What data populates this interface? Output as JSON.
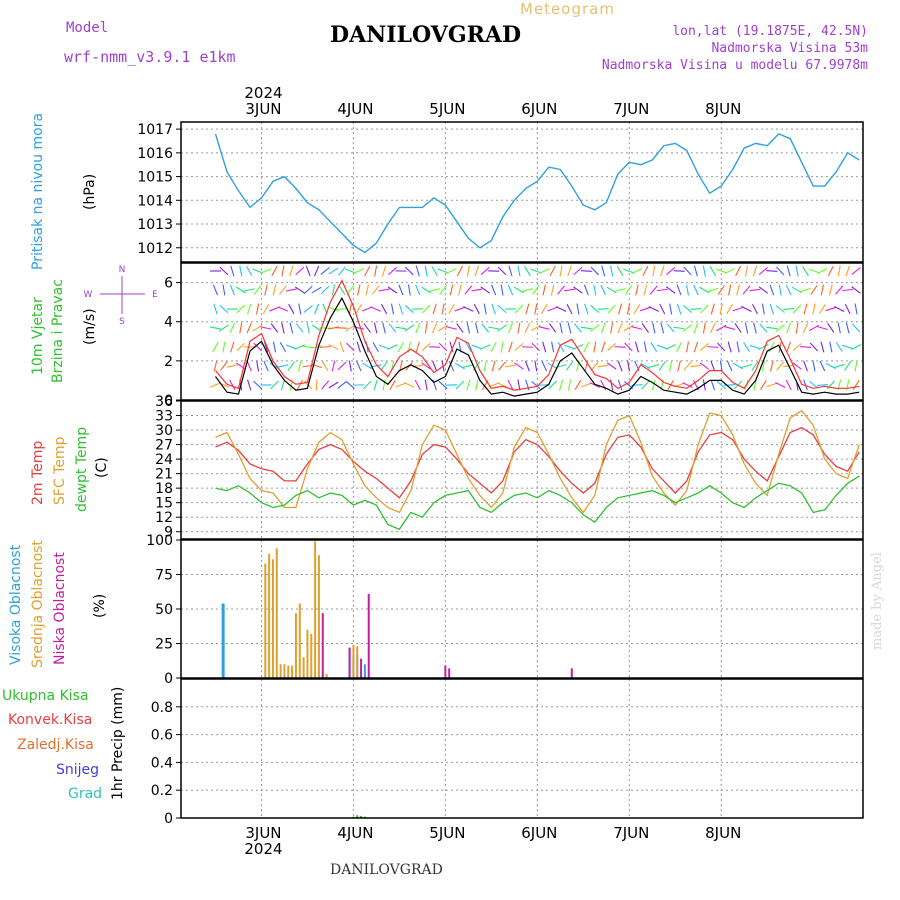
{
  "header": {
    "title": "DANILOVGRAD",
    "subtitle": "Meteogram",
    "model_label": "Model",
    "model_value": "wrf-nmm_v3.9.1 e1km",
    "coords": "lon,lat (19.1875E, 42.5N)",
    "elevation": "Nadmorska Visina 53m",
    "model_elevation": "Nadmorska Visina u modelu 67.9978m",
    "footer": "DANILOVGRAD",
    "credit": "made by Angel"
  },
  "colors": {
    "pressure": "#30a0e0",
    "temp2m": "#e84040",
    "sfc_temp": "#e0a030",
    "dewpt": "#30c030",
    "cloud_high": "#30a0e0",
    "cloud_mid": "#e0a030",
    "cloud_low": "#c020a0",
    "wind_speed": "#000000",
    "wind_gust": "#ff3030"
  },
  "chart_data": [
    {
      "type": "line",
      "panel": "pressure",
      "ylabel": [
        "Pritisak na nivou mora",
        "(hPa)"
      ],
      "ylim": [
        1011.4,
        1017.3
      ],
      "yticks": [
        1012,
        1013,
        1014,
        1015,
        1016,
        1017
      ],
      "x_year": "2024",
      "x_ticks": [
        "3JUN",
        "4JUN",
        "5JUN",
        "6JUN",
        "7JUN",
        "8JUN"
      ],
      "x_hours": [
        0,
        3,
        6,
        9,
        12,
        15,
        18,
        21,
        24,
        27,
        30,
        33,
        36,
        39,
        42,
        45,
        48,
        51,
        54,
        57,
        60,
        63,
        66,
        69,
        72,
        75,
        78,
        81,
        84,
        87,
        90,
        93,
        96,
        99,
        102,
        105,
        108,
        111,
        114,
        117,
        120,
        123,
        126,
        129,
        132,
        135,
        138,
        141,
        144,
        147,
        150,
        153,
        156,
        159,
        162,
        165,
        168
      ],
      "series": [
        {
          "name": "",
          "values": [
            1016.8,
            1015.2,
            1014.4,
            1013.7,
            1014.1,
            1014.8,
            1015.0,
            1014.5,
            1013.9,
            1013.6,
            1013.1,
            1012.6,
            1012.1,
            1011.8,
            1012.2,
            1013.0,
            1013.7,
            1013.7,
            1013.7,
            1014.1,
            1013.8,
            1013.1,
            1012.4,
            1012.0,
            1012.3,
            1013.3,
            1014.0,
            1014.5,
            1014.8,
            1015.4,
            1015.3,
            1014.6,
            1013.8,
            1013.6,
            1013.9,
            1015.1,
            1015.6,
            1015.5,
            1015.7,
            1016.3,
            1016.4,
            1016.1,
            1015.1,
            1014.3,
            1014.6,
            1015.3,
            1016.2,
            1016.4,
            1016.3,
            1016.8,
            1016.6,
            1015.6,
            1014.6,
            1014.6,
            1015.2,
            1016.0,
            1015.7
          ]
        }
      ]
    },
    {
      "type": "line",
      "panel": "wind",
      "ylabel": [
        "10m Vjetar",
        "Brzina i Pravac",
        "(m/s)"
      ],
      "compass": [
        "N",
        "W",
        "E",
        "S"
      ],
      "ylim": [
        0,
        7
      ],
      "yticks": [
        0,
        2,
        4,
        6
      ],
      "x_hours": [
        0,
        3,
        6,
        9,
        12,
        15,
        18,
        21,
        24,
        27,
        30,
        33,
        36,
        39,
        42,
        45,
        48,
        51,
        54,
        57,
        60,
        63,
        66,
        69,
        72,
        75,
        78,
        81,
        84,
        87,
        90,
        93,
        96,
        99,
        102,
        105,
        108,
        111,
        114,
        117,
        120,
        123,
        126,
        129,
        132,
        135,
        138,
        141,
        144,
        147,
        150,
        153,
        156,
        159,
        162,
        165,
        168
      ],
      "series": [
        {
          "name": "",
          "values": [
            1.2,
            0.4,
            0.3,
            2.5,
            3.0,
            1.8,
            1.0,
            0.5,
            0.6,
            2.8,
            4.2,
            5.2,
            4.0,
            2.5,
            1.2,
            0.8,
            1.5,
            1.8,
            1.5,
            0.9,
            1.2,
            2.6,
            2.3,
            1.0,
            0.3,
            0.4,
            0.2,
            0.3,
            0.4,
            0.8,
            2.0,
            2.4,
            1.6,
            0.8,
            0.6,
            0.3,
            0.5,
            1.2,
            0.9,
            0.5,
            0.4,
            0.3,
            0.6,
            1.0,
            1.0,
            0.5,
            0.3,
            1.0,
            2.5,
            2.8,
            1.6,
            0.4,
            0.3,
            0.4,
            0.3,
            0.3,
            0.4
          ]
        },
        {
          "name": "",
          "values": [
            1.5,
            0.8,
            0.6,
            3.0,
            3.4,
            2.0,
            1.2,
            0.8,
            0.9,
            3.3,
            5.0,
            6.1,
            4.8,
            3.0,
            1.8,
            1.2,
            2.2,
            2.6,
            2.2,
            1.4,
            1.8,
            3.2,
            2.9,
            1.5,
            0.6,
            0.7,
            0.5,
            0.6,
            0.7,
            1.3,
            2.8,
            3.1,
            2.2,
            1.3,
            1.1,
            0.6,
            0.9,
            1.8,
            1.4,
            0.9,
            0.7,
            0.6,
            1.0,
            1.5,
            1.5,
            0.9,
            0.6,
            1.5,
            3.0,
            3.3,
            2.1,
            0.8,
            0.6,
            0.7,
            0.6,
            0.6,
            0.7
          ]
        }
      ]
    },
    {
      "type": "line",
      "panel": "temperature",
      "ylabel": [
        "2m Temp",
        "SFC Temp",
        "dewpt Temp",
        "(C)"
      ],
      "ylim": [
        7.5,
        36
      ],
      "yticks": [
        9,
        12,
        15,
        18,
        21,
        24,
        27,
        30,
        33,
        36
      ],
      "x_hours": [
        0,
        3,
        6,
        9,
        12,
        15,
        18,
        21,
        24,
        27,
        30,
        33,
        36,
        39,
        42,
        45,
        48,
        51,
        54,
        57,
        60,
        63,
        66,
        69,
        72,
        75,
        78,
        81,
        84,
        87,
        90,
        93,
        96,
        99,
        102,
        105,
        108,
        111,
        114,
        117,
        120,
        123,
        126,
        129,
        132,
        135,
        138,
        141,
        144,
        147,
        150,
        153,
        156,
        159,
        162,
        165,
        168
      ],
      "series": [
        {
          "name": "2m Temp",
          "values": [
            26.5,
            27.5,
            25.8,
            23.0,
            22.0,
            21.5,
            19.5,
            19.5,
            23.0,
            26.0,
            27.0,
            26.0,
            23.5,
            21.5,
            20.0,
            18.0,
            16.0,
            19.5,
            25.0,
            27.0,
            26.5,
            24.0,
            21.0,
            19.0,
            17.0,
            19.5,
            25.5,
            28.0,
            27.0,
            24.5,
            21.5,
            19.0,
            17.0,
            19.0,
            25.0,
            28.5,
            29.0,
            26.5,
            22.0,
            19.5,
            17.0,
            19.5,
            25.5,
            29.0,
            29.5,
            28.0,
            24.0,
            21.5,
            19.5,
            24.5,
            29.5,
            30.5,
            29.0,
            25.0,
            22.5,
            21.5,
            25.5
          ]
        },
        {
          "name": "SFC Temp",
          "values": [
            28.5,
            29.5,
            25.0,
            20.0,
            17.5,
            17.0,
            14.0,
            14.0,
            22.0,
            27.5,
            29.5,
            28.0,
            23.0,
            18.5,
            16.0,
            14.0,
            13.0,
            17.5,
            27.0,
            31.0,
            30.0,
            25.0,
            20.0,
            16.5,
            14.0,
            17.0,
            26.5,
            30.5,
            29.5,
            25.0,
            20.0,
            16.0,
            13.0,
            16.5,
            27.0,
            32.0,
            33.0,
            27.5,
            20.5,
            17.0,
            14.5,
            17.5,
            27.0,
            33.5,
            33.0,
            29.0,
            23.0,
            19.0,
            16.5,
            25.0,
            32.5,
            34.0,
            31.0,
            24.0,
            21.0,
            20.0,
            27.0
          ]
        },
        {
          "name": "dewpt Temp",
          "values": [
            18.0,
            17.5,
            18.5,
            17.0,
            15.0,
            14.0,
            14.5,
            16.5,
            17.5,
            16.0,
            17.0,
            16.5,
            14.5,
            15.5,
            14.5,
            10.5,
            9.5,
            13.0,
            12.0,
            15.0,
            16.5,
            17.0,
            17.5,
            14.0,
            13.0,
            15.0,
            16.5,
            17.0,
            16.0,
            17.5,
            16.5,
            15.0,
            12.5,
            11.0,
            14.0,
            16.0,
            16.5,
            17.0,
            17.5,
            16.5,
            15.0,
            16.0,
            17.0,
            18.5,
            17.0,
            15.0,
            14.0,
            16.0,
            17.5,
            19.0,
            18.5,
            17.0,
            13.0,
            13.5,
            16.5,
            19.0,
            20.5
          ]
        }
      ]
    },
    {
      "type": "bar",
      "panel": "clouds",
      "ylabel": [
        "Visoka Oblacnost",
        "Srednja Oblacnost",
        "Niska Oblacnost",
        "(%)"
      ],
      "ylim": [
        0,
        100
      ],
      "yticks": [
        0,
        25,
        50,
        75,
        100
      ],
      "series": [
        {
          "name": "Visoka Oblacnost",
          "x_hours": [
            2,
            35,
            36,
            37,
            39
          ],
          "values": [
            54,
            22,
            16,
            17,
            10
          ]
        },
        {
          "name": "Srednja Oblacnost",
          "x_hours": [
            13,
            14,
            15,
            16,
            17,
            18,
            19,
            20,
            21,
            22,
            23,
            24,
            25,
            26,
            27,
            28,
            29,
            36,
            37
          ],
          "values": [
            83,
            90,
            86,
            94,
            10,
            10,
            9,
            9,
            47,
            54,
            15,
            35,
            32,
            99,
            89,
            4,
            3,
            24,
            23
          ]
        },
        {
          "name": "Niska Oblacnost",
          "x_hours": [
            28,
            35,
            38,
            40,
            60,
            61,
            93
          ],
          "values": [
            47,
            22,
            14,
            61,
            9,
            7,
            7
          ]
        }
      ]
    },
    {
      "type": "bar",
      "panel": "precip",
      "ylabel": [
        "1hr Precip (mm)"
      ],
      "legend": [
        "Ukupna Kisa",
        "Konvek.Kisa",
        "Zaledj.Kisa",
        "Snijeg",
        "Grad"
      ],
      "ylim": [
        0,
        1
      ],
      "yticks": [
        0,
        0.2,
        0.4,
        0.6,
        0.8
      ],
      "series": [
        {
          "name": "Ukupna Kisa",
          "x_hours": [
            36,
            37,
            38,
            39
          ],
          "values": [
            0.01,
            0.02,
            0.015,
            0.01
          ]
        }
      ]
    }
  ]
}
